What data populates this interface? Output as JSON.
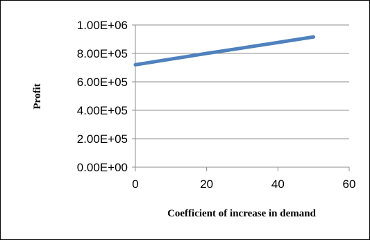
{
  "chart_data": {
    "type": "line",
    "title": "",
    "xlabel": "Coefficient of increase in demand",
    "ylabel": "Profit",
    "xlim": [
      0,
      60
    ],
    "ylim": [
      0,
      1000000
    ],
    "x_ticks": [
      0,
      20,
      40,
      60
    ],
    "x_tick_labels": [
      "0",
      "20",
      "40",
      "60"
    ],
    "y_ticks": [
      0,
      200000,
      400000,
      600000,
      800000,
      1000000
    ],
    "y_tick_labels": [
      "0.00E+00",
      "2.00E+05",
      "4.00E+05",
      "6.00E+05",
      "8.00E+05",
      "1.00E+06"
    ],
    "grid": "horizontal",
    "legend": "none",
    "series": [
      {
        "color": "#4f81bd",
        "x": [
          0,
          10,
          20,
          30,
          40,
          50
        ],
        "y": [
          720000,
          760000,
          800000,
          838000,
          877000,
          916000
        ]
      }
    ]
  }
}
